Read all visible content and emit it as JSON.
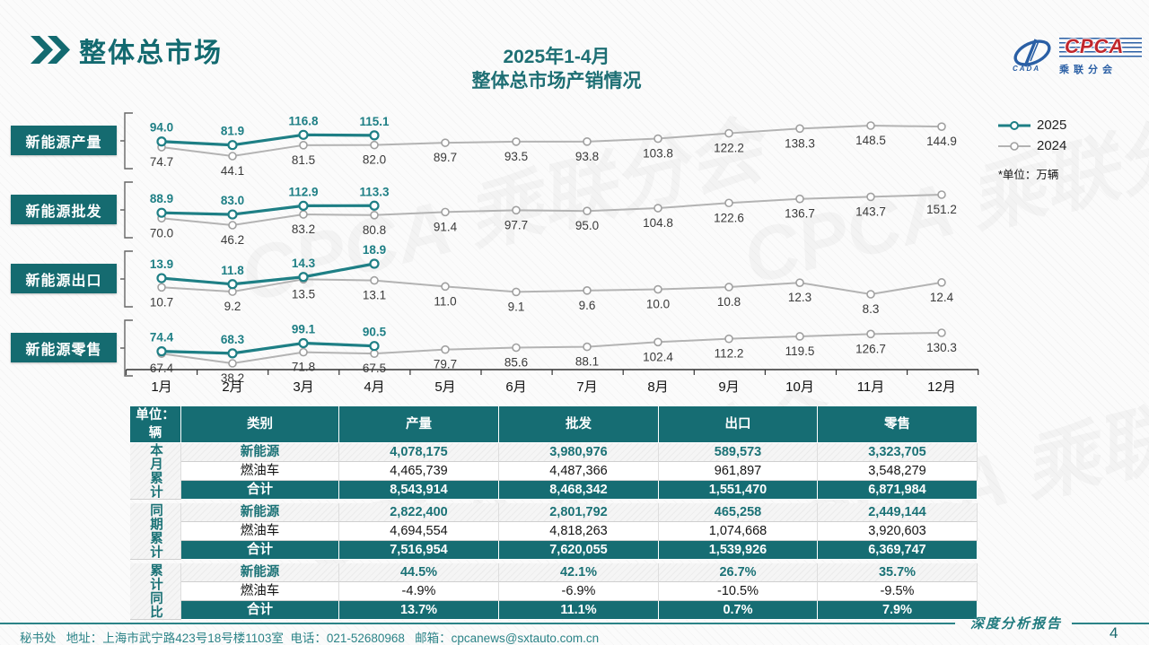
{
  "header": {
    "title": "整体总市场",
    "subtitle_line1": "2025年1-4月",
    "subtitle_line2": "整体总市场产销情况",
    "logo": {
      "cpca": "CPCA",
      "cada": "CADA",
      "cn_name": "乘联分会"
    }
  },
  "legend": {
    "series_2025": "2025",
    "series_2024": "2024",
    "unit_note": "*单位：万辆"
  },
  "colors": {
    "teal_accent": "#156b70",
    "teal_line_2025": "#1e7f85",
    "gray_line_2024": "#b3b3b3",
    "logo_red": "#c0272d",
    "logo_blue": "#2a5fa5"
  },
  "chart_data": {
    "type": "line",
    "unit": "万辆",
    "x": [
      "1月",
      "2月",
      "3月",
      "4月",
      "5月",
      "6月",
      "7月",
      "8月",
      "9月",
      "10月",
      "11月",
      "12月"
    ],
    "legend_position": "top-right",
    "grid": false,
    "rows": [
      {
        "label": "新能源产量",
        "series": [
          {
            "name": "2025",
            "values": [
              94.0,
              81.9,
              116.8,
              115.1
            ]
          },
          {
            "name": "2024",
            "values": [
              74.7,
              44.1,
              81.5,
              82.0,
              89.7,
              93.5,
              93.8,
              103.8,
              122.2,
              138.3,
              148.5,
              144.9
            ]
          }
        ]
      },
      {
        "label": "新能源批发",
        "series": [
          {
            "name": "2025",
            "values": [
              88.9,
              83.0,
              112.9,
              113.3
            ]
          },
          {
            "name": "2024",
            "values": [
              70.0,
              46.2,
              83.2,
              80.8,
              91.4,
              97.7,
              95.0,
              104.8,
              122.6,
              136.7,
              143.7,
              151.2
            ]
          }
        ]
      },
      {
        "label": "新能源出口",
        "series": [
          {
            "name": "2025",
            "values": [
              13.9,
              11.8,
              14.3,
              18.9
            ]
          },
          {
            "name": "2024",
            "values": [
              10.7,
              9.2,
              13.5,
              13.1,
              11.0,
              9.1,
              9.6,
              10.0,
              10.8,
              12.3,
              8.3,
              12.4
            ]
          }
        ]
      },
      {
        "label": "新能源零售",
        "series": [
          {
            "name": "2025",
            "values": [
              74.4,
              68.3,
              99.1,
              90.5
            ]
          },
          {
            "name": "2024",
            "values": [
              67.4,
              38.2,
              71.8,
              67.5,
              79.7,
              85.6,
              88.1,
              102.4,
              112.2,
              119.5,
              126.7,
              130.3
            ]
          }
        ]
      }
    ]
  },
  "table": {
    "unit_label": "单位：辆",
    "columns": [
      "类别",
      "产量",
      "批发",
      "出口",
      "零售"
    ],
    "groups": [
      {
        "name": "本月累计",
        "rows": [
          {
            "category": "新能源",
            "style": "nev",
            "values": [
              "4,078,175",
              "3,980,976",
              "589,573",
              "3,323,705"
            ]
          },
          {
            "category": "燃油车",
            "style": "ice",
            "values": [
              "4,465,739",
              "4,487,366",
              "961,897",
              "3,548,279"
            ]
          },
          {
            "category": "合计",
            "style": "total",
            "values": [
              "8,543,914",
              "8,468,342",
              "1,551,470",
              "6,871,984"
            ]
          }
        ]
      },
      {
        "name": "同期累计",
        "rows": [
          {
            "category": "新能源",
            "style": "nev",
            "values": [
              "2,822,400",
              "2,801,792",
              "465,258",
              "2,449,144"
            ]
          },
          {
            "category": "燃油车",
            "style": "ice",
            "values": [
              "4,694,554",
              "4,818,263",
              "1,074,668",
              "3,920,603"
            ]
          },
          {
            "category": "合计",
            "style": "total",
            "values": [
              "7,516,954",
              "7,620,055",
              "1,539,926",
              "6,369,747"
            ]
          }
        ]
      },
      {
        "name": "累计同比",
        "rows": [
          {
            "category": "新能源",
            "style": "nev",
            "values": [
              "44.5%",
              "42.1%",
              "26.7%",
              "35.7%"
            ]
          },
          {
            "category": "燃油车",
            "style": "ice",
            "values": [
              "-4.9%",
              "-6.9%",
              "-10.5%",
              "-9.5%"
            ]
          },
          {
            "category": "合计",
            "style": "total",
            "values": [
              "13.7%",
              "11.1%",
              "0.7%",
              "7.9%"
            ]
          }
        ]
      }
    ]
  },
  "footer": {
    "address": "秘书处   地址：上海市武宁路423号18号楼1103室  电话：021-52680968   邮箱：cpcanews@sxtauto.com.cn",
    "report_label": "深度分析报告",
    "page_number": "4"
  },
  "decor": {
    "watermark_text": "CPCA 乘联分会"
  }
}
